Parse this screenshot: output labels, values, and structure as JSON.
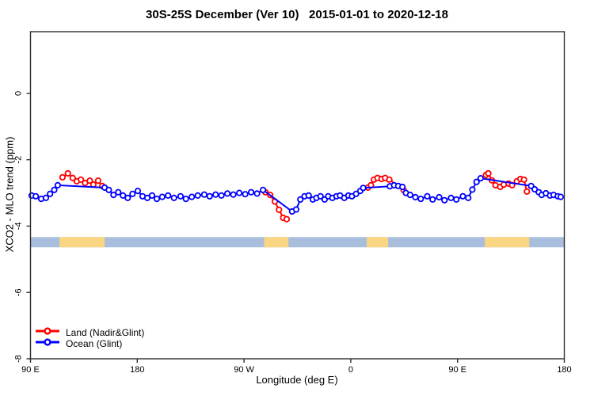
{
  "chart_data": {
    "type": "line",
    "title": "30S-25S December (Ver 10)   2015-01-01 to 2020-12-18",
    "xlabel": "Longitude (deg E)",
    "ylabel": "XCO2 - MLO trend (ppm)",
    "x_axis_note": "x positions are degrees along axis starting at 90E and wrapping eastward (0=90E, 90=180, 180=90W, 270=0, 360=90E, 450=180)",
    "xlim": [
      0,
      450
    ],
    "ylim": [
      -8,
      1.86
    ],
    "grid": false,
    "legend_position": "bottom-left",
    "x_ticks": [
      {
        "pos": 0,
        "label": "90 E"
      },
      {
        "pos": 90,
        "label": "180"
      },
      {
        "pos": 180,
        "label": "90 W"
      },
      {
        "pos": 270,
        "label": "0"
      },
      {
        "pos": 360,
        "label": "90 E"
      },
      {
        "pos": 450,
        "label": "180"
      }
    ],
    "y_ticks": [
      {
        "pos": 0,
        "label": "0"
      },
      {
        "pos": -2,
        "label": "-2"
      },
      {
        "pos": -4,
        "label": "-4"
      },
      {
        "pos": -6,
        "label": "-6"
      },
      {
        "pos": -8,
        "label": "-8"
      }
    ],
    "series": [
      {
        "id": "land",
        "name": "Land (Nadir&Glint)",
        "color": "#ff0000",
        "marker": "open-circle",
        "segments": [
          [
            [
              27,
              -2.53
            ],
            [
              31.5,
              -2.41
            ],
            [
              35.5,
              -2.55
            ],
            [
              39,
              -2.65
            ],
            [
              42.5,
              -2.6
            ],
            [
              46,
              -2.7
            ],
            [
              50,
              -2.63
            ],
            [
              53,
              -2.75
            ],
            [
              57,
              -2.63
            ],
            [
              60.5,
              -2.79
            ]
          ],
          [
            [
              198,
              -2.98
            ],
            [
              202,
              -3.06
            ],
            [
              206,
              -3.26
            ],
            [
              209.5,
              -3.51
            ],
            [
              213,
              -3.75
            ],
            [
              216,
              -3.79
            ]
          ],
          [
            [
              284.5,
              -2.84
            ],
            [
              287,
              -2.77
            ],
            [
              289.5,
              -2.6
            ],
            [
              292.5,
              -2.55
            ],
            [
              296,
              -2.58
            ],
            [
              299,
              -2.55
            ],
            [
              302.5,
              -2.6
            ],
            [
              314.5,
              -2.91
            ]
          ],
          [
            [
              384,
              -2.46
            ],
            [
              386,
              -2.41
            ],
            [
              389,
              -2.62
            ],
            [
              392,
              -2.77
            ],
            [
              396,
              -2.82
            ],
            [
              399,
              -2.75
            ],
            [
              403,
              -2.72
            ],
            [
              406,
              -2.77
            ],
            [
              410,
              -2.65
            ],
            [
              413,
              -2.58
            ],
            [
              416,
              -2.6
            ],
            [
              418.5,
              -2.96
            ]
          ]
        ]
      },
      {
        "id": "ocean",
        "name": "Ocean (Glint)",
        "color": "#0000ff",
        "marker": "open-circle",
        "segments": [
          [
            [
              1,
              -3.08
            ],
            [
              4.5,
              -3.1
            ],
            [
              9,
              -3.18
            ],
            [
              13,
              -3.15
            ],
            [
              16.5,
              -3.03
            ],
            [
              20,
              -2.91
            ],
            [
              23,
              -2.77
            ],
            [
              62.5,
              -2.84
            ],
            [
              66,
              -2.91
            ],
            [
              70,
              -3.06
            ],
            [
              74,
              -2.98
            ],
            [
              78,
              -3.08
            ],
            [
              82,
              -3.15
            ],
            [
              86,
              -3.03
            ],
            [
              90.5,
              -2.94
            ],
            [
              94.5,
              -3.1
            ],
            [
              98.5,
              -3.15
            ],
            [
              102.5,
              -3.08
            ],
            [
              106.5,
              -3.18
            ],
            [
              111,
              -3.12
            ],
            [
              116,
              -3.08
            ],
            [
              121,
              -3.15
            ],
            [
              126.5,
              -3.1
            ],
            [
              131,
              -3.18
            ],
            [
              136,
              -3.12
            ],
            [
              141,
              -3.08
            ],
            [
              146.5,
              -3.05
            ],
            [
              151,
              -3.1
            ],
            [
              156,
              -3.05
            ],
            [
              161,
              -3.08
            ],
            [
              166,
              -3.02
            ],
            [
              171,
              -3.05
            ],
            [
              176,
              -3.0
            ],
            [
              181,
              -3.04
            ],
            [
              186,
              -2.98
            ],
            [
              191,
              -3.02
            ],
            [
              196,
              -2.91
            ],
            [
              220.5,
              -3.56
            ],
            [
              224,
              -3.5
            ],
            [
              227.5,
              -3.2
            ],
            [
              231,
              -3.1
            ],
            [
              234.5,
              -3.08
            ],
            [
              238,
              -3.2
            ],
            [
              241,
              -3.15
            ],
            [
              244.5,
              -3.1
            ],
            [
              248,
              -3.2
            ],
            [
              251,
              -3.1
            ],
            [
              254.5,
              -3.15
            ],
            [
              258,
              -3.1
            ],
            [
              261,
              -3.08
            ],
            [
              264.5,
              -3.15
            ],
            [
              268,
              -3.08
            ],
            [
              271,
              -3.1
            ],
            [
              274.5,
              -3.03
            ],
            [
              278,
              -2.94
            ],
            [
              280.5,
              -2.85
            ],
            [
              303,
              -2.8
            ],
            [
              306.5,
              -2.77
            ],
            [
              310,
              -2.79
            ],
            [
              313.5,
              -2.82
            ],
            [
              316.5,
              -3.0
            ],
            [
              320,
              -3.06
            ],
            [
              324.5,
              -3.13
            ],
            [
              329,
              -3.18
            ],
            [
              334.5,
              -3.1
            ],
            [
              339,
              -3.2
            ],
            [
              344.5,
              -3.13
            ],
            [
              349,
              -3.22
            ],
            [
              354.5,
              -3.15
            ],
            [
              359,
              -3.2
            ],
            [
              364.5,
              -3.1
            ],
            [
              369,
              -3.15
            ],
            [
              372.5,
              -2.9
            ],
            [
              376,
              -2.67
            ],
            [
              379.5,
              -2.56
            ],
            [
              422,
              -2.79
            ],
            [
              425,
              -2.89
            ],
            [
              428.5,
              -2.98
            ],
            [
              431,
              -3.06
            ],
            [
              434.5,
              -3.01
            ],
            [
              438,
              -3.08
            ],
            [
              441,
              -3.06
            ],
            [
              444.5,
              -3.1
            ],
            [
              447,
              -3.12
            ]
          ]
        ]
      }
    ],
    "surface_type_band": {
      "y_top": -4.33,
      "y_bottom": -4.64,
      "ocean_color": "#a9bedd",
      "land_color": "#fbd682",
      "land_ranges": [
        [
          24.5,
          62.5
        ],
        [
          197,
          217.5
        ],
        [
          283.5,
          301.5
        ],
        [
          383,
          420.5
        ]
      ]
    },
    "frame_color": "#2e2e2e"
  }
}
